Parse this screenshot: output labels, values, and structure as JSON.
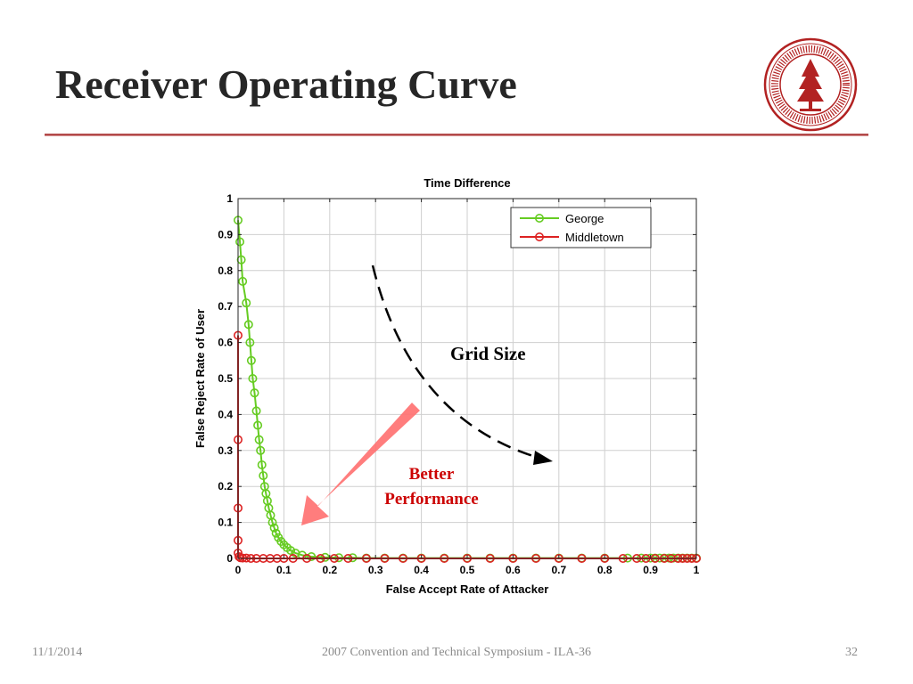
{
  "slide": {
    "title": "Receiver Operating Curve",
    "footer_date": "11/1/2014",
    "footer_center": "2007 Convention and Technical Symposium - ILA-36",
    "page_number": "32"
  },
  "colors": {
    "george": "#66cc22",
    "middletown": "#dd2222",
    "arrow": "#ff6f6f",
    "annotation_red": "#cc0000",
    "seal_red": "#b22222"
  },
  "chart_data": {
    "type": "line",
    "title": "Time Difference",
    "xlabel": "False Accept Rate of Attacker",
    "ylabel": "False Reject Rate of User",
    "xlim": [
      0,
      1
    ],
    "ylim": [
      0,
      1
    ],
    "xticks": [
      "0",
      "0.1",
      "0.2",
      "0.3",
      "0.4",
      "0.5",
      "0.6",
      "0.7",
      "0.8",
      "0.9",
      "1"
    ],
    "yticks": [
      "0",
      "0.1",
      "0.2",
      "0.3",
      "0.4",
      "0.5",
      "0.6",
      "0.7",
      "0.8",
      "0.9",
      "1"
    ],
    "grid": true,
    "legend_position": "top-right",
    "series": [
      {
        "name": "George",
        "marker": "circle",
        "x": [
          0,
          0.004,
          0.007,
          0.01,
          0.018,
          0.023,
          0.026,
          0.029,
          0.032,
          0.036,
          0.04,
          0.043,
          0.046,
          0.049,
          0.052,
          0.055,
          0.058,
          0.061,
          0.064,
          0.067,
          0.071,
          0.075,
          0.079,
          0.083,
          0.088,
          0.094,
          0.1,
          0.107,
          0.115,
          0.125,
          0.14,
          0.16,
          0.19,
          0.22,
          0.25,
          0.28,
          0.32,
          0.36,
          0.4,
          0.45,
          0.5,
          0.55,
          0.6,
          0.65,
          0.7,
          0.75,
          0.8,
          0.85,
          0.88,
          0.9,
          0.91,
          0.92,
          0.93,
          0.94,
          0.95,
          0.96,
          0.97,
          0.98,
          0.99,
          1.0
        ],
        "y": [
          0.94,
          0.88,
          0.83,
          0.77,
          0.71,
          0.65,
          0.6,
          0.55,
          0.5,
          0.46,
          0.41,
          0.37,
          0.33,
          0.3,
          0.26,
          0.23,
          0.2,
          0.18,
          0.16,
          0.14,
          0.12,
          0.1,
          0.085,
          0.07,
          0.058,
          0.047,
          0.038,
          0.03,
          0.022,
          0.015,
          0.009,
          0.005,
          0.003,
          0.002,
          0.002,
          0.001,
          0.001,
          0.001,
          0.001,
          0.001,
          0.001,
          0.001,
          0.001,
          0.001,
          0.001,
          0.001,
          0.001,
          0.001,
          0.001,
          0.001,
          0.001,
          0.001,
          0.001,
          0.001,
          0.001,
          0.001,
          0.001,
          0.001,
          0.001,
          0.001
        ]
      },
      {
        "name": "Middletown",
        "marker": "circle",
        "x": [
          0,
          0,
          0,
          0,
          0,
          0.002,
          0.005,
          0.01,
          0.018,
          0.028,
          0.04,
          0.055,
          0.07,
          0.085,
          0.1,
          0.12,
          0.15,
          0.18,
          0.21,
          0.24,
          0.28,
          0.32,
          0.36,
          0.4,
          0.45,
          0.5,
          0.55,
          0.6,
          0.65,
          0.7,
          0.75,
          0.8,
          0.84,
          0.87,
          0.89,
          0.91,
          0.93,
          0.945,
          0.96,
          0.97,
          0.98,
          0.99,
          1.0
        ],
        "y": [
          0.62,
          0.33,
          0.14,
          0.05,
          0.015,
          0.005,
          0.002,
          0.001,
          0.001,
          0,
          0,
          0,
          0,
          0,
          0,
          0,
          0,
          0,
          0,
          0,
          0,
          0,
          0,
          0,
          0,
          0,
          0,
          0,
          0,
          0,
          0,
          0,
          0,
          0,
          0,
          0,
          0,
          0,
          0,
          0,
          0,
          0,
          0
        ]
      }
    ],
    "annotations": [
      {
        "text": "Grid Size"
      },
      {
        "text": "Better"
      },
      {
        "text": "Performance"
      }
    ]
  }
}
